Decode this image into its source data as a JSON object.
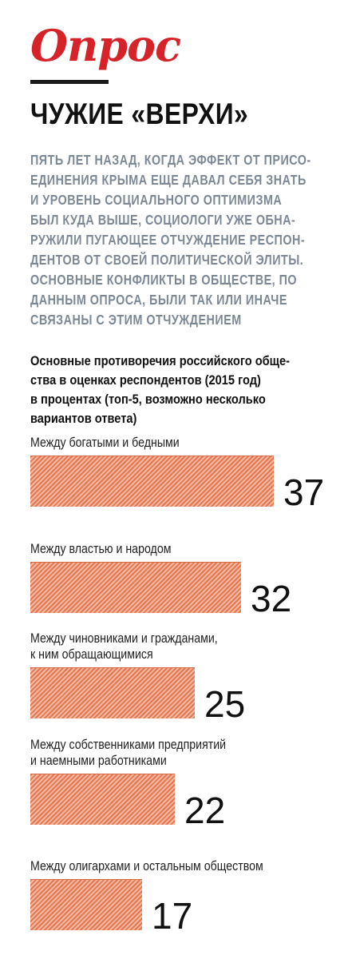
{
  "header": {
    "rubric": "Опрос",
    "headline": "ЧУЖИЕ «ВЕРХИ»",
    "lead_lines": [
      "ПЯТЬ ЛЕТ НАЗАД, КОГДА ЭФФЕКТ ОТ ПРИСО-",
      "ЕДИНЕНИЯ КРЫМА ЕЩЕ ДАВАЛ СЕБЯ ЗНАТЬ",
      "И УРОВЕНЬ СОЦИАЛЬНОГО ОПТИМИЗМА",
      "БЫЛ КУДА ВЫШЕ, СОЦИОЛОГИ УЖЕ ОБНА-",
      "РУЖИЛИ ПУГАЮЩЕЕ ОТЧУЖДЕНИЕ РЕСПОН-",
      "ДЕНТОВ ОТ СВОЕЙ ПОЛИТИЧЕСКОЙ ЭЛИТЫ.",
      "ОСНОВНЫЕ КОНФЛИКТЫ В ОБЩЕСТВЕ, ПО",
      "ДАННЫМ ОПРОСА, БЫЛИ ТАК ИЛИ ИНАЧЕ",
      "СВЯЗАНЫ С ЭТИМ ОТЧУЖДЕНИЕМ"
    ]
  },
  "colors": {
    "rubric": "#d6232a",
    "bar": "#e8886a",
    "lead": "#7d8896"
  },
  "chart_data": {
    "type": "bar",
    "orientation": "horizontal",
    "title_lines": [
      "Основные противоречия российского обще-",
      "ства в оценках респондентов (2015 год)",
      "в процентах (топ-5, возможно несколько",
      "вариантов ответа)"
    ],
    "categories": [
      [
        "Между богатыми и бедными"
      ],
      [
        "Между властью и народом"
      ],
      [
        "Между чиновниками и гражданами,",
        "к ним обращающимися"
      ],
      [
        "Между собственниками предприятий",
        "и наемными работниками"
      ],
      [
        "Между олигархами и остальным обществом"
      ]
    ],
    "values": [
      37,
      32,
      25,
      22,
      17
    ],
    "xlim": [
      0,
      37
    ],
    "grid": false,
    "legend": "none"
  }
}
